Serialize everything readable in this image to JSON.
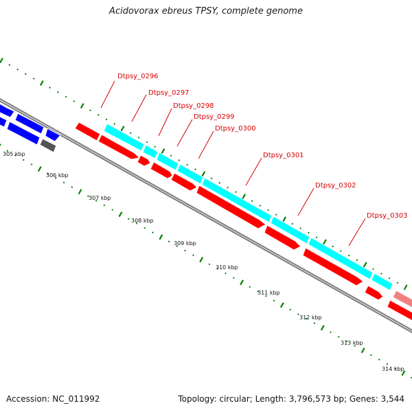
{
  "title": "Acidovorax ebreus TPSY, complete genome",
  "accession": "Accession: NC_011992",
  "stats": "Topology: circular; Length: 3,796,573 bp; Genes: 3,544",
  "colors": {
    "forward_cds": "#00ffff",
    "reverse_cds": "#ff0000",
    "left_cds": "#0000ff",
    "other_feature": "#555555",
    "pseudo_cds": "#f08080",
    "backbone": "#777777",
    "tick": "#008000",
    "label": "#d40000"
  },
  "kbp_labels": [
    "305 kbp",
    "306 kbp",
    "307 kbp",
    "308 kbp",
    "309 kbp",
    "310 kbp",
    "311 kbp",
    "312 kbp",
    "313 kbp",
    "314 kbp"
  ],
  "gene_labels": [
    "Dtpsy_0296",
    "Dtpsy_0297",
    "Dtpsy_0298",
    "Dtpsy_0299",
    "Dtpsy_0300",
    "Dtpsy_0301",
    "Dtpsy_0302",
    "Dtpsy_0303"
  ]
}
